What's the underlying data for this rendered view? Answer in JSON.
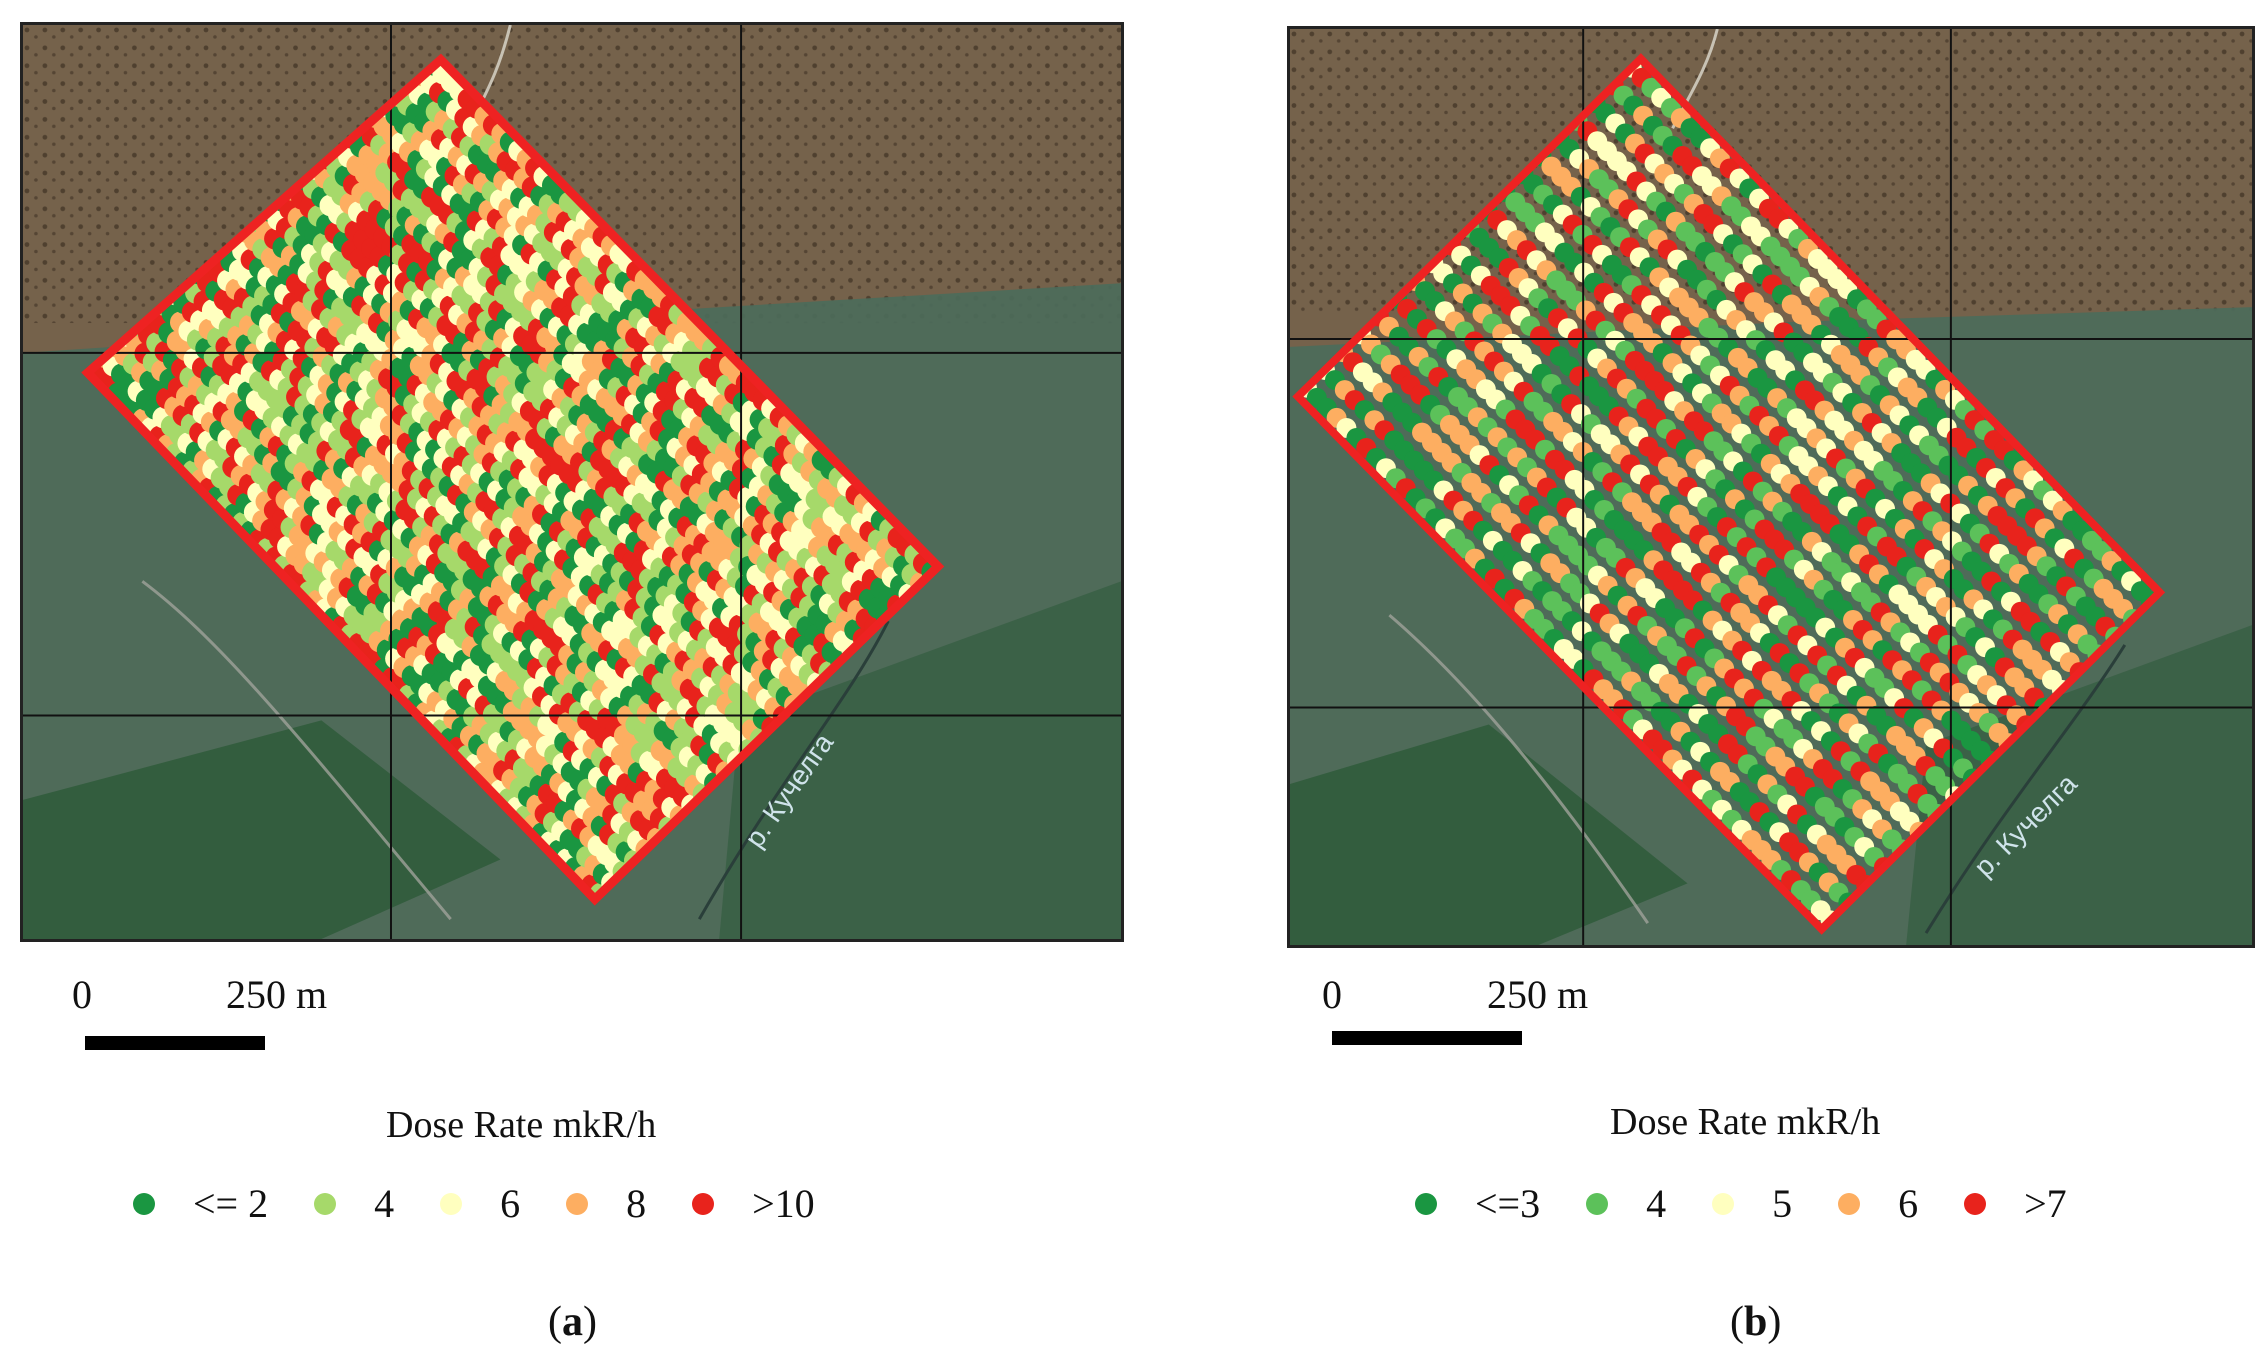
{
  "panels": [
    {
      "id": "a",
      "caption_open": "(",
      "caption_letter": "a",
      "caption_close": ")",
      "scalebar": {
        "start": "0",
        "end": "250 m"
      },
      "river_label": "р. Кучелга",
      "legend": {
        "title": "Dose Rate mkR/h",
        "classes": [
          {
            "label": "<= 2",
            "color": "#1a9641"
          },
          {
            "label": "4",
            "color": "#a6d96a"
          },
          {
            "label": "6",
            "color": "#ffffbf"
          },
          {
            "label": "8",
            "color": "#fdae61"
          },
          {
            "label": ">10",
            "color": "#e8231c"
          }
        ]
      },
      "survey_boundary_color": "#ee2222"
    },
    {
      "id": "b",
      "caption_open": "(",
      "caption_letter": "b",
      "caption_close": ")",
      "scalebar": {
        "start": "0",
        "end": "250 m"
      },
      "river_label": "р. Кучелга",
      "legend": {
        "title": "Dose Rate mkR/h",
        "classes": [
          {
            "label": "<=3",
            "color": "#1a9641"
          },
          {
            "label": "4",
            "color": "#5cc15a"
          },
          {
            "label": "5",
            "color": "#ffffbf"
          },
          {
            "label": "6",
            "color": "#fdae61"
          },
          {
            "label": ">7",
            "color": "#e8231c"
          }
        ]
      },
      "survey_boundary_color": "#ee2222"
    }
  ],
  "basemap_colors": {
    "hillside": "#6e5a45",
    "valley": "#4f6a55",
    "forest": "#2f5a3a"
  }
}
